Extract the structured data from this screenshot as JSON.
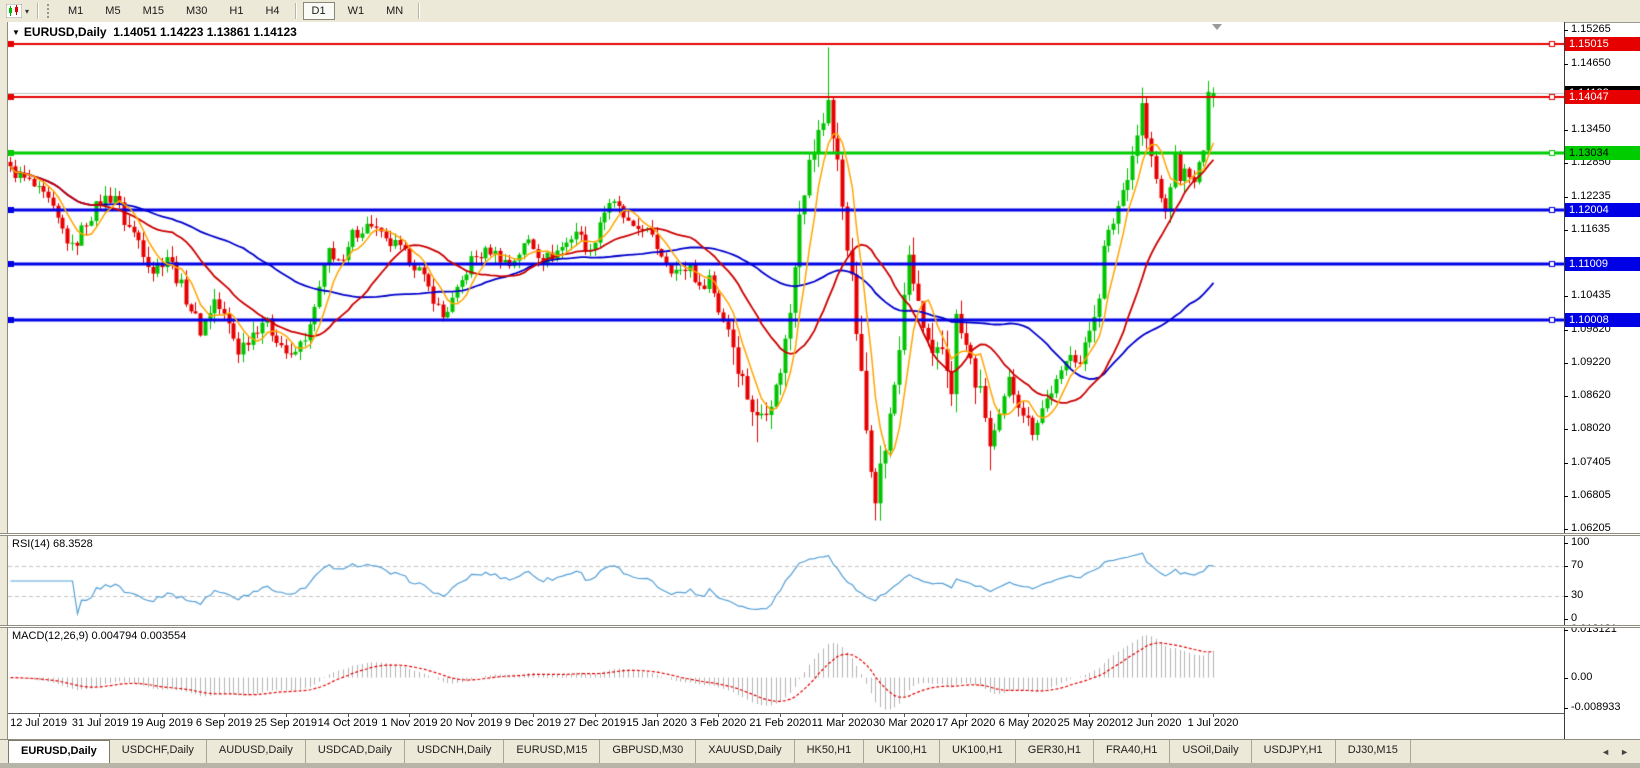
{
  "icons": {
    "chart_dropdown": "▼",
    "toolbar_caret": "▾",
    "scroll_left": "◄",
    "scroll_right": "►"
  },
  "toolbar": {
    "timeframes": [
      {
        "label": "M1"
      },
      {
        "label": "M5"
      },
      {
        "label": "M15"
      },
      {
        "label": "M30"
      },
      {
        "label": "H1"
      },
      {
        "label": "H4",
        "separator_after": true
      },
      {
        "label": "D1",
        "active": true
      },
      {
        "label": "W1"
      },
      {
        "label": "MN",
        "separator_after": true
      }
    ]
  },
  "chart": {
    "title": {
      "symbol": "EURUSD,Daily",
      "ohlc": "1.14051 1.14223 1.13861 1.14123"
    },
    "price_axis": {
      "ticks": [
        "1.15265",
        "1.14650",
        "1.13450",
        "1.12850",
        "1.12235",
        "1.11635",
        "1.10435",
        "1.09820",
        "1.09220",
        "1.08620",
        "1.08020",
        "1.07405",
        "1.06805",
        "1.06205"
      ],
      "current_price": {
        "label": "1.14123",
        "badge_color": "#000000",
        "text_color": "#FFFFFF",
        "line_color": "#C0C0C0"
      }
    },
    "hlines": [
      {
        "label": "1.15015",
        "price": 1.15015,
        "color": "#E60000",
        "text_color": "#FFFFFF",
        "width": 2
      },
      {
        "label": "1.14047",
        "price": 1.14047,
        "color": "#E60000",
        "text_color": "#FFFFFF",
        "width": 2
      },
      {
        "label": "1.13034",
        "price": 1.13034,
        "color": "#00CC00",
        "text_color": "#000000",
        "width": 3
      },
      {
        "label": "1.12004",
        "price": 1.12004,
        "color": "#0000E6",
        "text_color": "#FFFFFF",
        "width": 3
      },
      {
        "label": "1.11009",
        "price": 1.11009,
        "color": "#0000E6",
        "text_color": "#FFFFFF",
        "width": 3
      },
      {
        "label": "1.10008",
        "price": 1.10008,
        "color": "#0000E6",
        "text_color": "#FFFFFF",
        "width": 3
      }
    ],
    "rsi": {
      "label": "RSI(14) 68.3528",
      "axis_ticks": [
        {
          "label": "100",
          "value": 100
        },
        {
          "label": "70",
          "value": 70
        },
        {
          "label": "30",
          "value": 30
        },
        {
          "label": "0",
          "value": 0
        }
      ]
    },
    "macd": {
      "label": "MACD(12,26,9) 0.004794 0.003554",
      "axis_ticks": [
        {
          "label": "0.013121",
          "value": 0.013121
        },
        {
          "label": "0.00",
          "value": 0
        },
        {
          "label": "-0.008933",
          "value": -0.008933
        }
      ]
    },
    "time_axis": {
      "labels": [
        {
          "text": "12 Jul 2019",
          "candle_index": 6
        },
        {
          "text": "31 Jul 2019",
          "candle_index": 19
        },
        {
          "text": "19 Aug 2019",
          "candle_index": 32
        },
        {
          "text": "6 Sep 2019",
          "candle_index": 45
        },
        {
          "text": "25 Sep 2019",
          "candle_index": 58
        },
        {
          "text": "14 Oct 2019",
          "candle_index": 71
        },
        {
          "text": "1 Nov 2019",
          "candle_index": 84
        },
        {
          "text": "20 Nov 2019",
          "candle_index": 97
        },
        {
          "text": "9 Dec 2019",
          "candle_index": 110
        },
        {
          "text": "27 Dec 2019",
          "candle_index": 123
        },
        {
          "text": "15 Jan 2020",
          "candle_index": 136
        },
        {
          "text": "3 Feb 2020",
          "candle_index": 149
        },
        {
          "text": "21 Feb 2020",
          "candle_index": 162
        },
        {
          "text": "11 Mar 2020",
          "candle_index": 175
        },
        {
          "text": "30 Mar 2020",
          "candle_index": 188
        },
        {
          "text": "17 Apr 2020",
          "candle_index": 201
        },
        {
          "text": "6 May 2020",
          "candle_index": 214
        },
        {
          "text": "25 May 2020",
          "candle_index": 227
        },
        {
          "text": "12 Jun 2020",
          "candle_index": 240
        },
        {
          "text": "1 Jul 2020",
          "candle_index": 253
        }
      ]
    }
  },
  "chart_data": {
    "type": "candlestick",
    "symbol": "EURUSD",
    "timeframe": "Daily",
    "last_candle": {
      "open": 1.14051,
      "high": 1.14223,
      "low": 1.13861,
      "close": 1.14123
    },
    "price_axis_range": {
      "top": 1.15265,
      "bottom": 1.06205
    },
    "candle_count": 254,
    "colors": {
      "up": "#00C400",
      "down": "#E60000"
    },
    "moving_averages": [
      {
        "period": 50,
        "color": "#0000CC",
        "width": 1.8
      },
      {
        "period": 20,
        "color": "#CC0000",
        "width": 1.8
      },
      {
        "period": 6,
        "color": "#FFA500",
        "width": 1.5
      }
    ],
    "rsi": {
      "period": 14,
      "color": "#55A0D7",
      "last_value": 68.3528,
      "levels": [
        70,
        30
      ],
      "range": [
        0,
        100
      ]
    },
    "macd": {
      "fast": 12,
      "slow": 26,
      "signal": 9,
      "histogram_color": "#B4B4B4",
      "signal_color": "#E60000",
      "last_macd": 0.004794,
      "last_signal": 0.003554,
      "range": [
        -0.008933,
        0.013121
      ]
    },
    "price_anchors": [
      [
        0,
        1.1272
      ],
      [
        4,
        1.125
      ],
      [
        8,
        1.1215
      ],
      [
        13,
        1.1128
      ],
      [
        16,
        1.118
      ],
      [
        19,
        1.1215
      ],
      [
        22,
        1.1228
      ],
      [
        24,
        1.118
      ],
      [
        27,
        1.1145
      ],
      [
        30,
        1.109
      ],
      [
        33,
        1.1118
      ],
      [
        36,
        1.106
      ],
      [
        40,
        1.0982
      ],
      [
        43,
        1.1036
      ],
      [
        46,
        1.099
      ],
      [
        48,
        1.0945
      ],
      [
        53,
        1.1
      ],
      [
        56,
        1.097
      ],
      [
        59,
        1.0927
      ],
      [
        63,
        1.0985
      ],
      [
        67,
        1.1127
      ],
      [
        70,
        1.11
      ],
      [
        72,
        1.1155
      ],
      [
        76,
        1.1175
      ],
      [
        79,
        1.114
      ],
      [
        81,
        1.1136
      ],
      [
        84,
        1.111
      ],
      [
        86,
        1.109
      ],
      [
        89,
        1.104
      ],
      [
        91,
        1.1005
      ],
      [
        94,
        1.105
      ],
      [
        97,
        1.1109
      ],
      [
        101,
        1.1127
      ],
      [
        105,
        1.11
      ],
      [
        109,
        1.1145
      ],
      [
        112,
        1.111
      ],
      [
        114,
        1.1118
      ],
      [
        117,
        1.114
      ],
      [
        119,
        1.1163
      ],
      [
        122,
        1.112
      ],
      [
        124,
        1.118
      ],
      [
        126,
        1.1215
      ],
      [
        128,
        1.12
      ],
      [
        131,
        1.116
      ],
      [
        133,
        1.1172
      ],
      [
        137,
        1.112
      ],
      [
        139,
        1.1095
      ],
      [
        141,
        1.1085
      ],
      [
        143,
        1.11
      ],
      [
        145,
        1.1054
      ],
      [
        147,
        1.108
      ],
      [
        149,
        1.1018
      ],
      [
        151,
        1.099
      ],
      [
        154,
        1.089
      ],
      [
        157,
        1.0817
      ],
      [
        159,
        1.085
      ],
      [
        161,
        1.0872
      ],
      [
        163,
        1.096
      ],
      [
        164,
        1.1018
      ],
      [
        166,
        1.1209
      ],
      [
        168,
        1.128
      ],
      [
        169,
        1.131
      ],
      [
        171,
        1.136
      ],
      [
        172,
        1.141
      ],
      [
        173,
        1.133
      ],
      [
        174,
        1.128
      ],
      [
        176,
        1.1145
      ],
      [
        178,
        1.0982
      ],
      [
        180,
        1.08
      ],
      [
        182,
        1.069
      ],
      [
        184,
        1.077
      ],
      [
        185,
        1.0817
      ],
      [
        187,
        1.095
      ],
      [
        188,
        1.1054
      ],
      [
        189,
        1.11
      ],
      [
        191,
        1.103
      ],
      [
        192,
        1.0982
      ],
      [
        194,
        1.092
      ],
      [
        196,
        1.0945
      ],
      [
        198,
        1.088
      ],
      [
        199,
        1.1
      ],
      [
        201,
        1.095
      ],
      [
        203,
        1.089
      ],
      [
        205,
        1.083
      ],
      [
        206,
        1.077
      ],
      [
        208,
        1.082
      ],
      [
        210,
        1.089
      ],
      [
        212,
        1.085
      ],
      [
        215,
        1.08
      ],
      [
        217,
        1.084
      ],
      [
        219,
        1.0872
      ],
      [
        221,
        1.09
      ],
      [
        223,
        1.0945
      ],
      [
        225,
        1.092
      ],
      [
        227,
        1.0982
      ],
      [
        229,
        1.105
      ],
      [
        230,
        1.1127
      ],
      [
        232,
        1.118
      ],
      [
        234,
        1.1236
      ],
      [
        236,
        1.13
      ],
      [
        237,
        1.134
      ],
      [
        238,
        1.139
      ],
      [
        239,
        1.133
      ],
      [
        240,
        1.129
      ],
      [
        242,
        1.1218
      ],
      [
        243,
        1.1195
      ],
      [
        244,
        1.125
      ],
      [
        245,
        1.129
      ],
      [
        246,
        1.126
      ],
      [
        248,
        1.1272
      ],
      [
        249,
        1.124
      ],
      [
        250,
        1.128
      ],
      [
        251,
        1.131
      ],
      [
        252,
        1.14
      ],
      [
        253,
        1.14123
      ]
    ],
    "wick_overrides": {
      "157": {
        "l": 1.0778
      },
      "172": {
        "h": 1.1495
      },
      "182": {
        "l": 1.0636
      },
      "206": {
        "l": 1.0727
      },
      "238": {
        "h": 1.1422
      },
      "253": {
        "o": 1.14051,
        "h": 1.14223,
        "l": 1.13861,
        "c": 1.14123
      }
    }
  },
  "tabs": {
    "items": [
      {
        "label": "EURUSD,Daily",
        "active": true
      },
      {
        "label": "USDCHF,Daily"
      },
      {
        "label": "AUDUSD,Daily"
      },
      {
        "label": "USDCAD,Daily"
      },
      {
        "label": "USDCNH,Daily"
      },
      {
        "label": "EURUSD,M15"
      },
      {
        "label": "GBPUSD,M30"
      },
      {
        "label": "XAUUSD,Daily"
      },
      {
        "label": "HK50,H1"
      },
      {
        "label": "UK100,H1"
      },
      {
        "label": "UK100,H1"
      },
      {
        "label": "GER30,H1"
      },
      {
        "label": "FRA40,H1"
      },
      {
        "label": "USOil,Daily"
      },
      {
        "label": "USDJPY,H1"
      },
      {
        "label": "DJ30,M15"
      }
    ]
  }
}
